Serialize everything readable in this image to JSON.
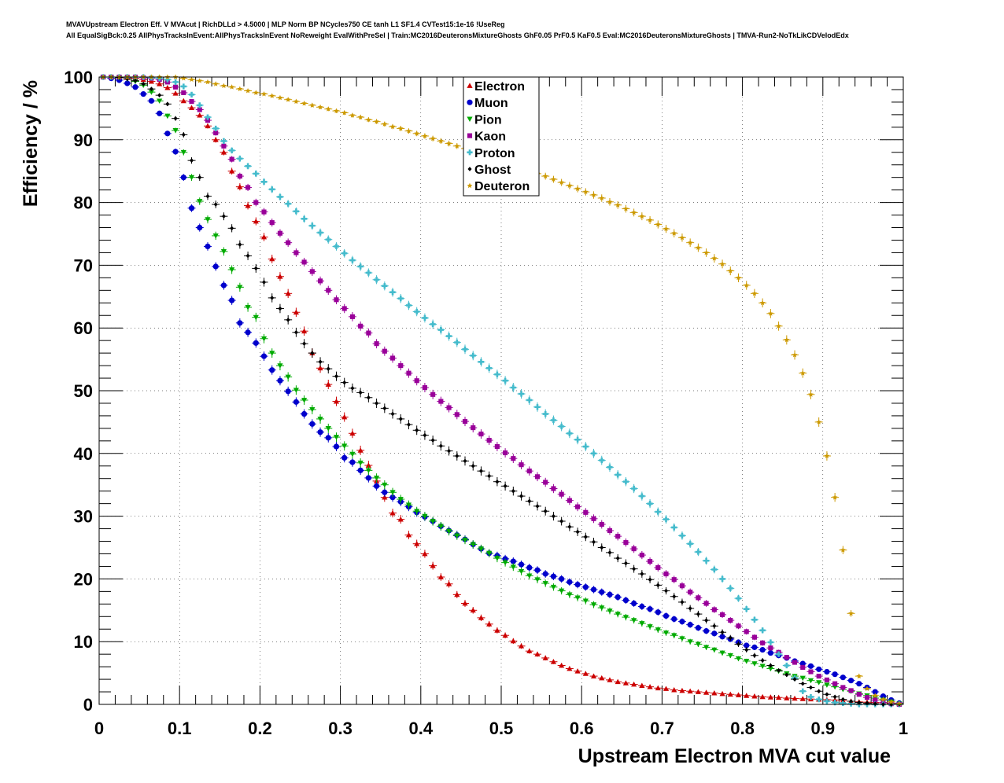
{
  "header": {
    "title_line1": "MVAVUpstream Electron Eff. V MVAcut | RichDLLd > 4.5000 | MLP Norm BP NCycles750 CE tanh L1 SF1.4 CVTest15:1e-16 !UseReg",
    "title_line2": "All EqualSigBck:0.25 AllPhysTracksInEvent:AllPhysTracksInEvent NoReweight EvalWithPreSel | Train:MC2016DeuteronsMixtureGhosts GhF0.05 PrF0.5 KaF0.5 Eval:MC2016DeuteronsMixtureGhosts | TMVA-Run2-NoTkLikCDVelodEdx"
  },
  "chart_data": {
    "type": "scatter",
    "xlabel": "Upstream Electron MVA cut value",
    "ylabel": "Efficiency / %",
    "xlim": [
      0,
      1
    ],
    "ylim": [
      0,
      100
    ],
    "x_ticks": [
      "0",
      "0.1",
      "0.2",
      "0.3",
      "0.4",
      "0.5",
      "0.6",
      "0.7",
      "0.8",
      "0.9",
      "1"
    ],
    "y_ticks": [
      "0",
      "10",
      "20",
      "30",
      "40",
      "50",
      "60",
      "70",
      "80",
      "90",
      "100"
    ],
    "legend_position": "top-center",
    "x": [
      0.005,
      0.015,
      0.025,
      0.035,
      0.045,
      0.055,
      0.065,
      0.075,
      0.085,
      0.095,
      0.105,
      0.115,
      0.125,
      0.135,
      0.145,
      0.155,
      0.165,
      0.175,
      0.185,
      0.195,
      0.205,
      0.215,
      0.225,
      0.235,
      0.245,
      0.255,
      0.265,
      0.275,
      0.285,
      0.295,
      0.305,
      0.315,
      0.325,
      0.335,
      0.345,
      0.355,
      0.365,
      0.375,
      0.385,
      0.395,
      0.405,
      0.415,
      0.425,
      0.435,
      0.445,
      0.455,
      0.465,
      0.475,
      0.485,
      0.495,
      0.505,
      0.515,
      0.525,
      0.535,
      0.545,
      0.555,
      0.565,
      0.575,
      0.585,
      0.595,
      0.605,
      0.615,
      0.625,
      0.635,
      0.645,
      0.655,
      0.665,
      0.675,
      0.685,
      0.695,
      0.705,
      0.715,
      0.725,
      0.735,
      0.745,
      0.755,
      0.765,
      0.775,
      0.785,
      0.795,
      0.805,
      0.815,
      0.825,
      0.835,
      0.845,
      0.855,
      0.865,
      0.875,
      0.885,
      0.895,
      0.905,
      0.915,
      0.925,
      0.935,
      0.945,
      0.955,
      0.965,
      0.975,
      0.985,
      0.995
    ],
    "series": [
      {
        "name": "Electron",
        "color": "#cc0000",
        "marker": "triangle-up",
        "values": [
          100,
          100,
          100,
          99.9,
          99.8,
          99.6,
          99.3,
          98.9,
          98.3,
          97.4,
          96.2,
          95.1,
          93.9,
          92.2,
          90,
          88,
          85,
          82.5,
          79.5,
          77,
          74.5,
          71,
          68.2,
          65.5,
          62.5,
          59.5,
          56,
          53.6,
          51,
          48.3,
          45.8,
          43.2,
          40.5,
          38.1,
          35.6,
          33,
          30.5,
          29.5,
          27,
          25.6,
          24,
          22.1,
          20.3,
          19.2,
          17.5,
          16.1,
          15,
          13.8,
          12.8,
          11.8,
          11,
          10.1,
          9.3,
          8.5,
          8,
          7.4,
          6.8,
          6.2,
          5.7,
          5.3,
          4.9,
          4.5,
          4.2,
          3.9,
          3.6,
          3.4,
          3.2,
          3,
          2.8,
          2.6,
          2.5,
          2.3,
          2.2,
          2.1,
          2,
          1.9,
          1.8,
          1.7,
          1.6,
          1.5,
          1.4,
          1.3,
          1.2,
          1.15,
          1.1,
          1,
          0.95,
          0.9,
          0.85,
          0.8,
          0.75,
          0.7,
          0.6,
          0.5,
          0.4,
          0.35,
          0.3,
          0.25,
          0.2,
          0.1
        ]
      },
      {
        "name": "Muon",
        "color": "#0000cc",
        "marker": "circle",
        "values": [
          100,
          99.8,
          99.5,
          99,
          98.4,
          97.3,
          96.2,
          94.2,
          91,
          88.1,
          84,
          79.1,
          76,
          73,
          69.8,
          66.8,
          64.4,
          60.8,
          59.3,
          57.6,
          55.5,
          53.3,
          51.6,
          49.9,
          48.2,
          46.3,
          44.7,
          43.4,
          42.5,
          41.1,
          39.3,
          38.6,
          37.3,
          36.1,
          34.8,
          33.8,
          33,
          32.3,
          31.5,
          30.6,
          29.9,
          29.2,
          28.4,
          27.7,
          27,
          26.3,
          25.5,
          24.8,
          24.1,
          23.7,
          23.2,
          22.8,
          22.3,
          21.8,
          21.4,
          20.8,
          20.4,
          20,
          19.5,
          19.1,
          18.7,
          18.3,
          17.9,
          17.5,
          17.1,
          16.6,
          16.1,
          15.6,
          15.2,
          14.7,
          14.1,
          13.6,
          13.2,
          12.7,
          12.2,
          11.7,
          11.3,
          10.8,
          10.4,
          9.9,
          9.4,
          9.1,
          8.7,
          8.2,
          7.8,
          7.4,
          6.9,
          6.5,
          6.1,
          5.6,
          5.2,
          4.8,
          4.3,
          3.8,
          3.3,
          2.7,
          2,
          1.3,
          0.7,
          0.2
        ]
      },
      {
        "name": "Pion",
        "color": "#00aa00",
        "marker": "triangle-down",
        "values": [
          100,
          100,
          99.9,
          99.7,
          99.3,
          98.7,
          97.6,
          96.2,
          93.8,
          91.5,
          88,
          84,
          80.2,
          77.3,
          74.7,
          72.2,
          69.3,
          66.5,
          63.3,
          61.7,
          58.3,
          56,
          54,
          52.2,
          50.1,
          48.5,
          47,
          45.5,
          44,
          42.6,
          41.2,
          39.9,
          38.5,
          37.3,
          36.1,
          35,
          33.8,
          32.7,
          31.8,
          30.8,
          30,
          29.2,
          28.4,
          27.6,
          26.9,
          26.2,
          25.5,
          24.8,
          24.1,
          23.3,
          22.6,
          21.9,
          21.2,
          20.5,
          19.9,
          19.3,
          18.7,
          18.1,
          17.5,
          17,
          16.5,
          15.9,
          15.4,
          14.9,
          14.4,
          13.9,
          13.4,
          12.9,
          12.4,
          11.9,
          11.4,
          11,
          10.5,
          10,
          9.6,
          9.1,
          8.7,
          8.2,
          7.8,
          7.3,
          6.9,
          6.5,
          6.1,
          5.7,
          5.3,
          4.9,
          4.5,
          4.2,
          3.8,
          3.5,
          3.1,
          2.8,
          2.4,
          2.1,
          1.7,
          1.4,
          1,
          0.7,
          0.4,
          0.1
        ]
      },
      {
        "name": "Kaon",
        "color": "#990099",
        "marker": "square",
        "values": [
          100,
          100,
          100,
          100,
          100,
          99.9,
          99.8,
          99.6,
          99.2,
          98.4,
          97.5,
          96.1,
          94.8,
          93.1,
          91.1,
          89,
          86.9,
          84.2,
          82.4,
          80,
          78.5,
          76.8,
          75.1,
          73.6,
          72,
          70.5,
          69,
          67.5,
          66,
          64.5,
          63.1,
          61.8,
          60.3,
          59.2,
          57.5,
          56.3,
          55.2,
          54,
          52.8,
          51.6,
          50.5,
          49.4,
          48.3,
          47.3,
          46.2,
          45.1,
          44.1,
          43.1,
          42.1,
          41.1,
          40.1,
          39.2,
          38.2,
          37.2,
          36.3,
          35.4,
          34.4,
          33.5,
          32.5,
          31.5,
          30.6,
          29.6,
          28.7,
          27.7,
          26.8,
          25.8,
          24.8,
          23.8,
          22.8,
          21.8,
          20.8,
          19.9,
          18.9,
          17.9,
          17,
          16.1,
          15.1,
          14.3,
          13.4,
          12.5,
          11.6,
          10.7,
          9.8,
          9,
          8.3,
          7.5,
          6.7,
          5.9,
          5.2,
          4.5,
          3.9,
          3.3,
          2.7,
          2.2,
          1.6,
          1.1,
          0.7,
          0.3,
          0.1,
          0
        ]
      },
      {
        "name": "Proton",
        "color": "#44bbcc",
        "marker": "cross",
        "values": [
          100,
          100,
          100,
          100,
          100,
          100,
          99.9,
          99.8,
          99.6,
          99.2,
          98.5,
          97.2,
          95.5,
          93.6,
          91.8,
          89.8,
          88.3,
          87,
          85.8,
          84.6,
          83.3,
          82.1,
          80.9,
          79.8,
          78.6,
          77.4,
          76.3,
          75.2,
          74.1,
          73,
          71.9,
          70.8,
          69.8,
          68.8,
          67.7,
          66.7,
          65.7,
          64.7,
          63.6,
          62.6,
          61.6,
          60.6,
          59.7,
          58.7,
          57.7,
          56.6,
          55.6,
          54.6,
          53.6,
          52.6,
          51.6,
          50.5,
          49.5,
          48.5,
          47.4,
          46.3,
          45.3,
          44.3,
          43.2,
          42.2,
          41.1,
          40,
          38.9,
          37.8,
          36.6,
          35.5,
          34.4,
          33.2,
          32,
          30.7,
          29.5,
          28.2,
          26.9,
          25.6,
          24.3,
          22.9,
          21.5,
          20,
          18.5,
          16.9,
          15.2,
          13.5,
          11.8,
          9.9,
          8,
          6.2,
          4.2,
          2.1,
          1.2,
          0.8,
          0.5,
          0.3,
          0.2,
          0.1,
          0,
          0,
          0,
          0,
          0,
          0
        ]
      },
      {
        "name": "Ghost",
        "color": "#000000",
        "marker": "diamond",
        "values": [
          100,
          100,
          99.9,
          99.7,
          99.4,
          98.9,
          98.1,
          97.1,
          95.7,
          93.4,
          90.8,
          86.7,
          84,
          81,
          79.7,
          77.8,
          75.9,
          73.3,
          71.5,
          69.5,
          67.3,
          64.8,
          63.1,
          61.3,
          59.3,
          57.5,
          56,
          54.6,
          53.5,
          52.3,
          51.3,
          50.4,
          49.7,
          48.9,
          48,
          47.2,
          46.3,
          45.5,
          44.6,
          43.7,
          42.9,
          42.1,
          41.2,
          40.4,
          39.6,
          38.8,
          38,
          37.2,
          36.4,
          35.5,
          34.8,
          34,
          33.2,
          32.4,
          31.6,
          30.8,
          30,
          29.2,
          28.3,
          27.5,
          26.7,
          25.9,
          25,
          24.2,
          23.3,
          22.5,
          21.6,
          20.8,
          19.9,
          19,
          18.1,
          17.2,
          16.3,
          15.3,
          14.4,
          13.4,
          12.5,
          11.5,
          10.6,
          9.6,
          8.7,
          7.8,
          7,
          6.2,
          5.4,
          4.7,
          4,
          3.3,
          2.7,
          2.1,
          1.6,
          1.2,
          0.8,
          0.5,
          0.3,
          0.2,
          0.1,
          0,
          0,
          0
        ]
      },
      {
        "name": "Deuteron",
        "color": "#cc9900",
        "marker": "star",
        "values": [
          100,
          100,
          100,
          100,
          100,
          100,
          100,
          100,
          100,
          100,
          99.8,
          99.6,
          99.4,
          99.2,
          98.9,
          98.6,
          98.4,
          98.1,
          97.8,
          97.5,
          97.3,
          97,
          96.7,
          96.4,
          96.1,
          95.8,
          95.5,
          95.2,
          94.9,
          94.6,
          94.3,
          93.9,
          93.6,
          93.2,
          92.9,
          92.5,
          92.1,
          91.8,
          91.4,
          91,
          90.6,
          90.2,
          89.8,
          89.4,
          89,
          88.6,
          88.2,
          87.8,
          87.3,
          86.9,
          86.5,
          86,
          85.6,
          85.1,
          84.6,
          84.2,
          83.7,
          83.2,
          82.7,
          82.2,
          81.7,
          81.2,
          80.7,
          80.1,
          79.6,
          79,
          78.4,
          77.8,
          77.2,
          76.5,
          75.8,
          75.1,
          74.4,
          73.6,
          72.8,
          72,
          71.1,
          70.2,
          69.1,
          68,
          66.8,
          65.5,
          64,
          62.3,
          60.3,
          58.1,
          55.7,
          52.8,
          49.4,
          45,
          39.6,
          33,
          24.6,
          14.5,
          4.5,
          2.5,
          1.4,
          0.8,
          0.4,
          0.1
        ]
      }
    ]
  }
}
